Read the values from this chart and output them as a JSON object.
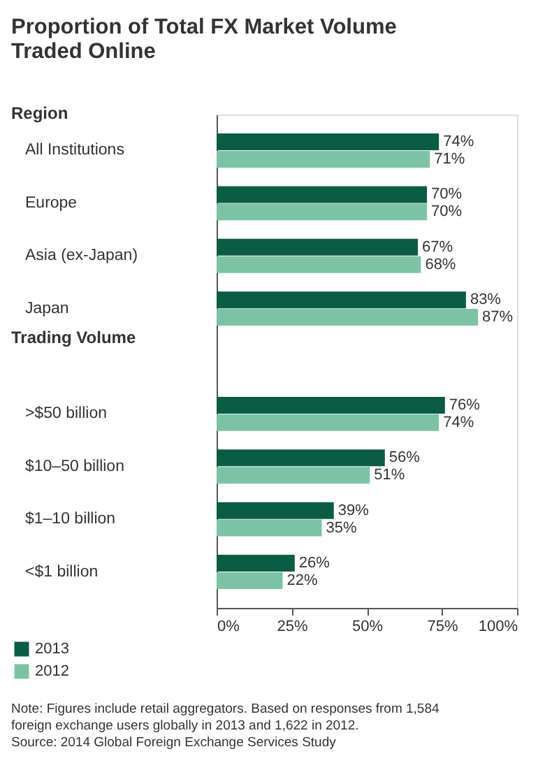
{
  "chart_data": {
    "type": "bar",
    "orientation": "horizontal",
    "title": "Proportion of Total FX Market Volume Traded Online",
    "categories": [
      "All Institutions",
      "Europe",
      "Asia (ex-Japan)",
      "Japan",
      ">$50 billion",
      "$10–50 billion",
      "$1–10 billion",
      "<$1 billion"
    ],
    "series": [
      {
        "name": "2013",
        "color": "#0b5c45",
        "values": [
          74,
          70,
          67,
          83,
          76,
          56,
          39,
          26
        ],
        "value_labels": [
          "74%",
          "70%",
          "67%",
          "83%",
          "76%",
          "56%",
          "39%",
          "26%"
        ]
      },
      {
        "name": "2012",
        "color": "#7cc3a6",
        "values": [
          71,
          70,
          68,
          87,
          74,
          51,
          35,
          22
        ],
        "value_labels": [
          "71%",
          "70%",
          "68%",
          "87%",
          "74%",
          "51%",
          "35%",
          "22%"
        ]
      }
    ],
    "xlim": [
      0,
      100
    ],
    "xticks": [
      {
        "value": 0,
        "label": "0%"
      },
      {
        "value": 25,
        "label": "25%"
      },
      {
        "value": 50,
        "label": "50%"
      },
      {
        "value": 75,
        "label": "75%"
      },
      {
        "value": 100,
        "label": "100%"
      }
    ],
    "grid": false,
    "legend": "bottom left",
    "annotations": [
      "Region",
      "Trading Volume",
      "Note: Figures include retail aggregators. Based on responses from 1,584 foreign exchange users globally in 2013 and 1,622 in 2012.",
      "Source: 2014 Global Foreign Exchange Services Study"
    ]
  }
}
